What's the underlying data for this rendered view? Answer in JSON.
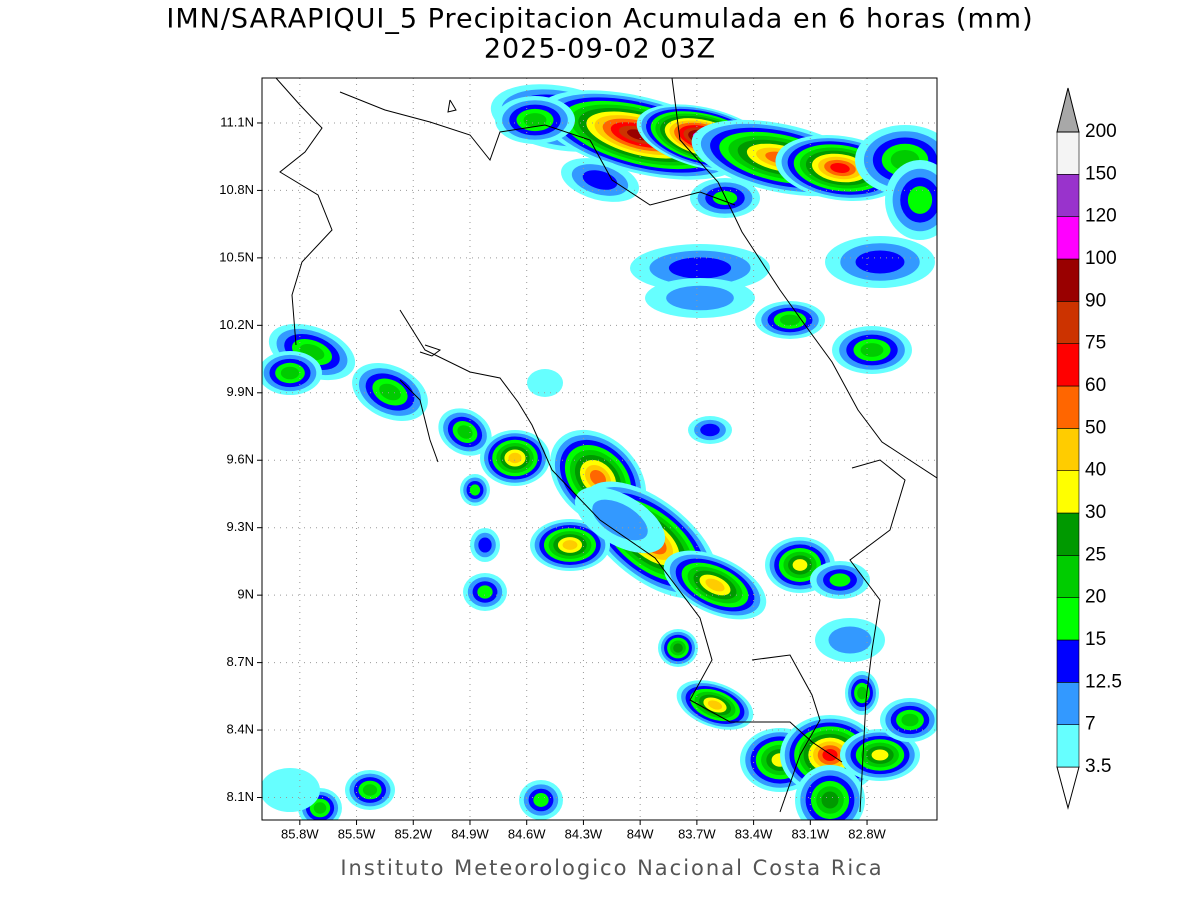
{
  "title": "IMN/SARAPIQUI_5 Precipitacion Acumulada en 6 horas (mm)",
  "subtitle": "2025-09-02 03Z",
  "credit": "Instituto Meteorologico Nacional Costa Rica",
  "map": {
    "xlim": [
      -86.0,
      -82.43
    ],
    "ylim": [
      8.0,
      11.3
    ],
    "grid": true,
    "xticks": [
      {
        "value": -85.8,
        "label": "85.8W"
      },
      {
        "value": -85.5,
        "label": "85.5W"
      },
      {
        "value": -85.2,
        "label": "85.2W"
      },
      {
        "value": -84.9,
        "label": "84.9W"
      },
      {
        "value": -84.6,
        "label": "84.6W"
      },
      {
        "value": -84.3,
        "label": "84.3W"
      },
      {
        "value": -84.0,
        "label": "84W"
      },
      {
        "value": -83.7,
        "label": "83.7W"
      },
      {
        "value": -83.4,
        "label": "83.4W"
      },
      {
        "value": -83.1,
        "label": "83.1W"
      },
      {
        "value": -82.8,
        "label": "82.8W"
      }
    ],
    "yticks": [
      {
        "value": 8.1,
        "label": "8.1N"
      },
      {
        "value": 8.4,
        "label": "8.4N"
      },
      {
        "value": 8.7,
        "label": "8.7N"
      },
      {
        "value": 9.0,
        "label": "9N"
      },
      {
        "value": 9.3,
        "label": "9.3N"
      },
      {
        "value": 9.6,
        "label": "9.6N"
      },
      {
        "value": 9.9,
        "label": "9.9N"
      },
      {
        "value": 10.2,
        "label": "10.2N"
      },
      {
        "value": 10.5,
        "label": "10.5N"
      },
      {
        "value": 10.8,
        "label": "10.8N"
      },
      {
        "value": 11.1,
        "label": "11.1N"
      }
    ]
  },
  "colorbar": {
    "levels": [
      3.5,
      7,
      12.5,
      15,
      20,
      25,
      30,
      40,
      50,
      60,
      75,
      90,
      100,
      120,
      150,
      200
    ],
    "colors": [
      "#ffffff",
      "#66ffff",
      "#3399ff",
      "#0000ff",
      "#00ff00",
      "#00cc00",
      "#009900",
      "#ffff00",
      "#ffcc00",
      "#ff6600",
      "#ff0000",
      "#cc3300",
      "#990000",
      "#ff00ff",
      "#9933cc",
      "#f4f4f4",
      "#a8a8a8"
    ]
  }
}
